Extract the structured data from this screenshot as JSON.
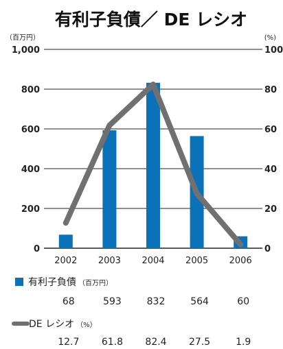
{
  "chart_data": {
    "type": "bar",
    "title": "有利子負債／ DE レシオ",
    "categories": [
      "2002",
      "2003",
      "2004",
      "2005",
      "2006"
    ],
    "left_axis": {
      "unit": "（百万円）",
      "ticks": [
        "0",
        "200",
        "400",
        "600",
        "800",
        "1,000"
      ],
      "ylim": [
        0,
        1000
      ]
    },
    "right_axis": {
      "unit": "(%)",
      "ticks": [
        "0",
        "20",
        "40",
        "60",
        "80",
        "100"
      ],
      "ylim": [
        0,
        100
      ]
    },
    "series": [
      {
        "name": "有利子負債",
        "unit": "（百万円）",
        "type": "bar",
        "axis": "left",
        "color": "#0b72b9",
        "values": [
          68,
          593,
          832,
          564,
          60
        ],
        "labels": [
          "68",
          "593",
          "832",
          "564",
          "60"
        ]
      },
      {
        "name": "DE レシオ",
        "unit": "（%）",
        "type": "line",
        "axis": "right",
        "color": "#707070",
        "values": [
          12.7,
          61.8,
          82.4,
          27.5,
          1.9
        ],
        "labels": [
          "12.7",
          "61.8",
          "82.4",
          "27.5",
          "1.9"
        ]
      }
    ],
    "grid": true,
    "legend": "bottom"
  }
}
